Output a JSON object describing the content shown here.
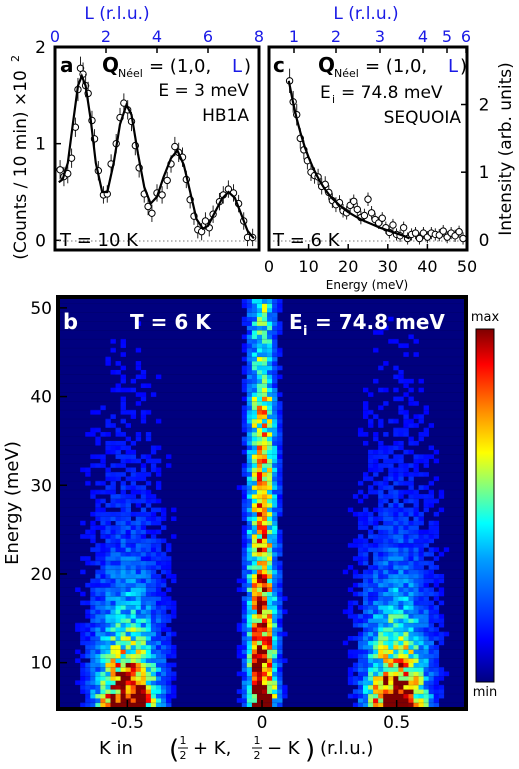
{
  "chart_data": [
    {
      "id": "a",
      "type": "scatter",
      "panel_label": "a",
      "q_neel_symbol": "Q",
      "q_neel_subscript": "Néel",
      "q_neel_value": "= (1,0,",
      "q_neel_L": "L",
      "q_neel_close": ")",
      "energy_text": "E = 3 meV",
      "instrument": "HB1A",
      "temperature": "T = 10 K",
      "top_axis_label": "L (r.l.u.)",
      "ylabel": "(Counts / 10 min) ×10",
      "ylabel_exp": "2",
      "xlim": [
        0,
        8
      ],
      "ylim": [
        -0.1,
        2.0
      ],
      "x_ticks": [
        0,
        2,
        4,
        6,
        8
      ],
      "y_ticks": [
        0,
        1,
        2
      ],
      "points": [
        [
          0.2,
          0.73,
          0.1
        ],
        [
          0.35,
          0.66,
          0.1
        ],
        [
          0.5,
          0.69,
          0.1
        ],
        [
          0.65,
          0.85,
          0.1
        ],
        [
          0.8,
          1.17,
          0.1
        ],
        [
          0.9,
          1.56,
          0.12
        ],
        [
          1.0,
          1.78,
          0.12
        ],
        [
          1.1,
          1.72,
          0.12
        ],
        [
          1.2,
          1.6,
          0.12
        ],
        [
          1.3,
          1.52,
          0.12
        ],
        [
          1.45,
          1.24,
          0.1
        ],
        [
          1.55,
          1.05,
          0.1
        ],
        [
          1.7,
          0.72,
          0.1
        ],
        [
          1.9,
          0.47,
          0.09
        ],
        [
          2.05,
          0.48,
          0.09
        ],
        [
          2.2,
          0.79,
          0.1
        ],
        [
          2.4,
          1.0,
          0.1
        ],
        [
          2.55,
          1.27,
          0.1
        ],
        [
          2.7,
          1.42,
          0.1
        ],
        [
          2.85,
          1.35,
          0.1
        ],
        [
          3.0,
          1.23,
          0.1
        ],
        [
          3.15,
          0.98,
          0.1
        ],
        [
          3.3,
          0.75,
          0.1
        ],
        [
          3.5,
          0.48,
          0.09
        ],
        [
          3.65,
          0.35,
          0.09
        ],
        [
          3.8,
          0.28,
          0.09
        ],
        [
          4.0,
          0.49,
          0.09
        ],
        [
          4.2,
          0.47,
          0.09
        ],
        [
          4.4,
          0.62,
          0.09
        ],
        [
          4.55,
          0.79,
          0.09
        ],
        [
          4.7,
          0.97,
          0.1
        ],
        [
          4.85,
          0.91,
          0.1
        ],
        [
          5.0,
          0.86,
          0.1
        ],
        [
          5.15,
          0.63,
          0.09
        ],
        [
          5.3,
          0.42,
          0.09
        ],
        [
          5.45,
          0.25,
          0.09
        ],
        [
          5.6,
          0.11,
          0.09
        ],
        [
          5.75,
          0.09,
          0.09
        ],
        [
          5.9,
          0.2,
          0.09
        ],
        [
          6.05,
          0.13,
          0.09
        ],
        [
          6.2,
          0.27,
          0.09
        ],
        [
          6.45,
          0.4,
          0.09
        ],
        [
          6.6,
          0.47,
          0.09
        ],
        [
          6.8,
          0.53,
          0.09
        ],
        [
          7.0,
          0.49,
          0.09
        ],
        [
          7.2,
          0.38,
          0.09
        ],
        [
          7.4,
          0.2,
          0.09
        ],
        [
          7.55,
          0.03,
          0.09
        ],
        [
          7.75,
          0.03,
          0.09
        ]
      ],
      "fit": [
        [
          0.15,
          0.6
        ],
        [
          0.3,
          0.63
        ],
        [
          0.5,
          0.8
        ],
        [
          0.7,
          1.2
        ],
        [
          0.9,
          1.6
        ],
        [
          1.05,
          1.7
        ],
        [
          1.2,
          1.6
        ],
        [
          1.4,
          1.25
        ],
        [
          1.6,
          0.8
        ],
        [
          1.85,
          0.5
        ],
        [
          2.05,
          0.5
        ],
        [
          2.3,
          0.8
        ],
        [
          2.55,
          1.2
        ],
        [
          2.8,
          1.4
        ],
        [
          3.0,
          1.3
        ],
        [
          3.25,
          0.9
        ],
        [
          3.5,
          0.55
        ],
        [
          3.75,
          0.38
        ],
        [
          4.0,
          0.45
        ],
        [
          4.25,
          0.65
        ],
        [
          4.55,
          0.85
        ],
        [
          4.8,
          0.93
        ],
        [
          5.05,
          0.78
        ],
        [
          5.3,
          0.5
        ],
        [
          5.55,
          0.22
        ],
        [
          5.8,
          0.12
        ],
        [
          6.0,
          0.15
        ],
        [
          6.25,
          0.28
        ],
        [
          6.55,
          0.43
        ],
        [
          6.8,
          0.5
        ],
        [
          7.05,
          0.44
        ],
        [
          7.3,
          0.27
        ],
        [
          7.55,
          0.1
        ],
        [
          7.8,
          0.02
        ]
      ]
    },
    {
      "id": "c",
      "type": "scatter",
      "panel_label": "c",
      "q_neel_symbol": "Q",
      "q_neel_subscript": "Néel",
      "q_neel_value": "= (1,0,",
      "q_neel_L": "L",
      "q_neel_close": ")",
      "energy_main": "E",
      "energy_sub": "i",
      "energy_value": "= 74.8 meV",
      "instrument": "SEQUOIA",
      "temperature": "T = 6 K",
      "top_axis_label": "L (r.l.u.)",
      "xlabel": "Energy (meV)",
      "ylabel": "Intensity (arb. units)",
      "xlim": [
        0,
        50
      ],
      "ylim": [
        -0.15,
        2.85
      ],
      "x_ticks": [
        0,
        10,
        20,
        30,
        40,
        50
      ],
      "y_ticks": [
        0,
        1,
        2
      ],
      "top_ticks": [
        1,
        2,
        3,
        4,
        5,
        6
      ],
      "points": [
        [
          5.2,
          2.35,
          0.18
        ],
        [
          6.1,
          2.04,
          0.16
        ],
        [
          7.0,
          1.85,
          0.16
        ],
        [
          7.9,
          1.5,
          0.15
        ],
        [
          8.8,
          1.33,
          0.14
        ],
        [
          9.7,
          1.17,
          0.13
        ],
        [
          10.6,
          1.0,
          0.13
        ],
        [
          11.5,
          0.95,
          0.12
        ],
        [
          12.4,
          0.93,
          0.12
        ],
        [
          13.3,
          0.79,
          0.12
        ],
        [
          14.2,
          0.82,
          0.12
        ],
        [
          15.1,
          0.7,
          0.11
        ],
        [
          16.0,
          0.58,
          0.11
        ],
        [
          16.9,
          0.52,
          0.11
        ],
        [
          17.8,
          0.55,
          0.11
        ],
        [
          18.7,
          0.43,
          0.1
        ],
        [
          19.6,
          0.4,
          0.1
        ],
        [
          20.5,
          0.51,
          0.1
        ],
        [
          21.4,
          0.57,
          0.1
        ],
        [
          22.3,
          0.45,
          0.1
        ],
        [
          23.2,
          0.33,
          0.1
        ],
        [
          24.1,
          0.36,
          0.1
        ],
        [
          25.0,
          0.6,
          0.1
        ],
        [
          25.9,
          0.4,
          0.1
        ],
        [
          26.8,
          0.3,
          0.1
        ],
        [
          27.7,
          0.25,
          0.09
        ],
        [
          28.6,
          0.32,
          0.09
        ],
        [
          29.5,
          0.18,
          0.09
        ],
        [
          30.4,
          0.11,
          0.09
        ],
        [
          31.3,
          0.22,
          0.09
        ],
        [
          32.2,
          0.08,
          0.09
        ],
        [
          33.1,
          0.06,
          0.09
        ],
        [
          34.0,
          0.18,
          0.09
        ],
        [
          35.0,
          0.02,
          0.09
        ],
        [
          36.0,
          0.08,
          0.09
        ],
        [
          37.0,
          0.1,
          0.09
        ],
        [
          38.0,
          0.02,
          0.09
        ],
        [
          39.0,
          0.1,
          0.09
        ],
        [
          40.0,
          0.04,
          0.09
        ],
        [
          41.0,
          0.1,
          0.09
        ],
        [
          42.0,
          0.08,
          0.09
        ],
        [
          43.0,
          0.07,
          0.09
        ],
        [
          44.0,
          0.13,
          0.09
        ],
        [
          45.0,
          0.04,
          0.09
        ],
        [
          46.0,
          0.1,
          0.09
        ],
        [
          47.0,
          0.06,
          0.09
        ],
        [
          48.0,
          0.12,
          0.09
        ],
        [
          49.0,
          0.02,
          0.09
        ]
      ],
      "fit": [
        [
          5.0,
          2.35
        ],
        [
          6.0,
          2.05
        ],
        [
          7.0,
          1.79
        ],
        [
          8.0,
          1.57
        ],
        [
          9.0,
          1.38
        ],
        [
          10.0,
          1.22
        ],
        [
          11.0,
          1.08
        ],
        [
          12.0,
          0.96
        ],
        [
          13.0,
          0.85
        ],
        [
          14.0,
          0.76
        ],
        [
          15.0,
          0.68
        ],
        [
          16.0,
          0.61
        ],
        [
          18.0,
          0.5
        ],
        [
          20.0,
          0.41
        ],
        [
          22.0,
          0.34
        ],
        [
          24.0,
          0.28
        ],
        [
          26.0,
          0.23
        ],
        [
          28.0,
          0.18
        ],
        [
          30.0,
          0.14
        ],
        [
          32.0,
          0.1
        ],
        [
          34.0,
          0.06
        ],
        [
          35.5,
          0.02
        ]
      ]
    },
    {
      "id": "b",
      "type": "heatmap",
      "panel_label": "b",
      "temperature": "T = 6 K",
      "energy_main": "E",
      "energy_sub": "i",
      "energy_value": "= 74.8 meV",
      "xlabel_prefix": "K in",
      "xlabel_h1": "+ K,",
      "xlabel_h2": "− K",
      "xlabel_suffix": "(r.l.u.)",
      "frac_num": "1",
      "frac_den": "2",
      "ylabel": "Energy (meV)",
      "xlim": [
        -0.75,
        0.75
      ],
      "ylim": [
        5,
        51
      ],
      "x_ticks": [
        -0.5,
        0,
        0.5
      ],
      "x_tick_labels": [
        "-0.5",
        "0",
        "0.5"
      ],
      "y_ticks": [
        10,
        20,
        30,
        40,
        50
      ],
      "colorbar_max": "max",
      "colorbar_min": "min",
      "colormap": [
        "#00007f",
        "#0000ff",
        "#0080ff",
        "#00ffff",
        "#80ff80",
        "#ffff00",
        "#ff8000",
        "#ff0000",
        "#7f0000"
      ]
    }
  ]
}
